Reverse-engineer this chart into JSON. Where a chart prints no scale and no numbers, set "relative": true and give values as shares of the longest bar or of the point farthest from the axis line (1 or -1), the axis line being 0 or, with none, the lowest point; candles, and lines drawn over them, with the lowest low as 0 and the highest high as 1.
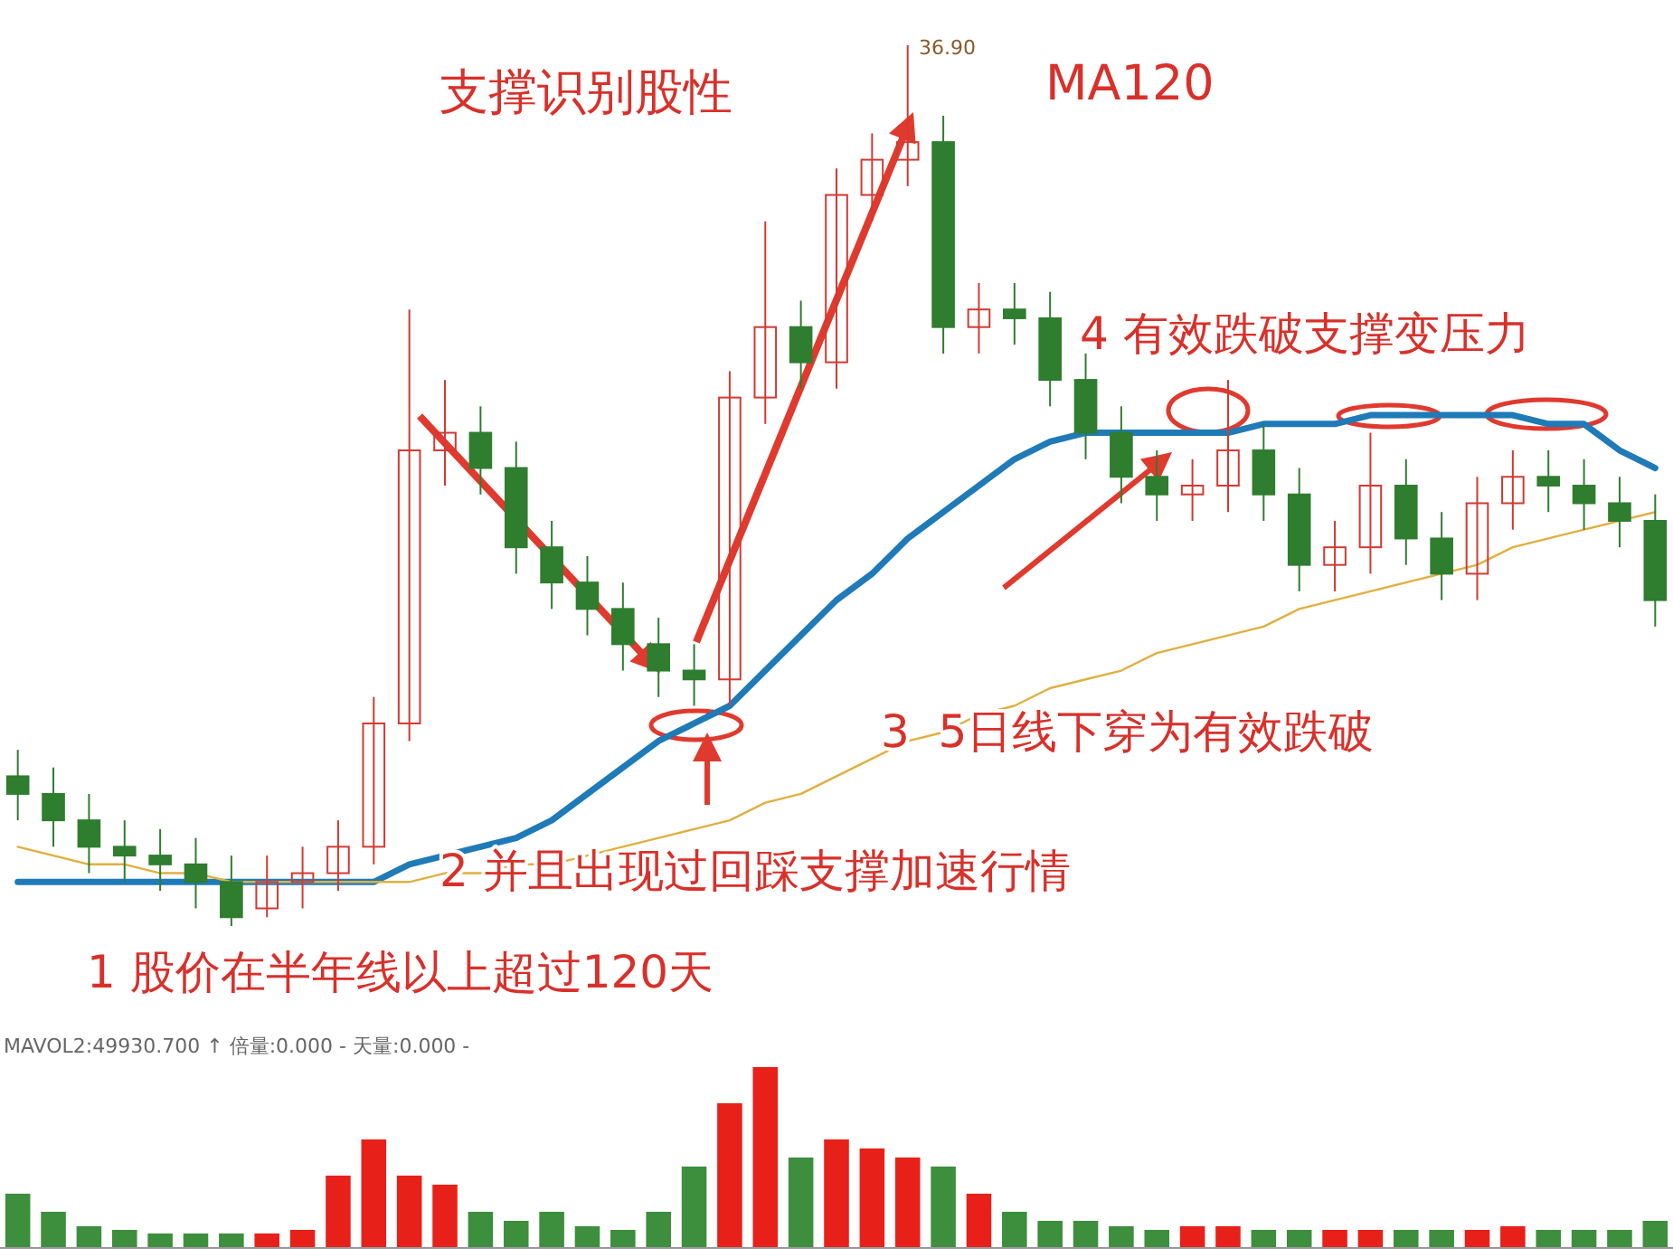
{
  "chart_data": [
    {
      "type": "candlestick",
      "relative": true,
      "categories": [
        null,
        null,
        null,
        null,
        null,
        null,
        null,
        null,
        null,
        null,
        null,
        null,
        null,
        null,
        null,
        null,
        null,
        null,
        null,
        null,
        null,
        null,
        null,
        null,
        null,
        null,
        null,
        null,
        null,
        null,
        null,
        null,
        null,
        null,
        null,
        null,
        null,
        null,
        null,
        null,
        null,
        null,
        null,
        null,
        null,
        null,
        null
      ],
      "ohlc": [
        [
          0.17,
          0.2,
          0.12,
          0.15
        ],
        [
          0.15,
          0.18,
          0.09,
          0.12
        ],
        [
          0.12,
          0.15,
          0.06,
          0.09
        ],
        [
          0.09,
          0.12,
          0.05,
          0.08
        ],
        [
          0.08,
          0.11,
          0.04,
          0.07
        ],
        [
          0.07,
          0.1,
          0.02,
          0.05
        ],
        [
          0.05,
          0.08,
          0.0,
          0.01
        ],
        [
          0.02,
          0.08,
          0.01,
          0.05
        ],
        [
          0.05,
          0.09,
          0.02,
          0.06
        ],
        [
          0.06,
          0.12,
          0.04,
          0.09
        ],
        [
          0.09,
          0.26,
          0.07,
          0.23
        ],
        [
          0.23,
          0.7,
          0.21,
          0.54
        ],
        [
          0.54,
          0.62,
          0.5,
          0.56
        ],
        [
          0.56,
          0.59,
          0.49,
          0.52
        ],
        [
          0.52,
          0.55,
          0.4,
          0.43
        ],
        [
          0.43,
          0.46,
          0.36,
          0.39
        ],
        [
          0.39,
          0.42,
          0.33,
          0.36
        ],
        [
          0.36,
          0.39,
          0.29,
          0.32
        ],
        [
          0.32,
          0.35,
          0.26,
          0.29
        ],
        [
          0.29,
          0.32,
          0.25,
          0.28
        ],
        [
          0.28,
          0.63,
          0.25,
          0.6
        ],
        [
          0.6,
          0.8,
          0.57,
          0.68
        ],
        [
          0.68,
          0.71,
          0.61,
          0.64
        ],
        [
          0.64,
          0.86,
          0.61,
          0.83
        ],
        [
          0.83,
          0.9,
          0.8,
          0.87
        ],
        [
          0.87,
          1.0,
          0.84,
          0.89
        ],
        [
          0.89,
          0.92,
          0.65,
          0.68
        ],
        [
          0.68,
          0.73,
          0.65,
          0.7
        ],
        [
          0.7,
          0.73,
          0.66,
          0.69
        ],
        [
          0.69,
          0.72,
          0.59,
          0.62
        ],
        [
          0.62,
          0.65,
          0.53,
          0.56
        ],
        [
          0.56,
          0.59,
          0.48,
          0.51
        ],
        [
          0.51,
          0.54,
          0.46,
          0.49
        ],
        [
          0.49,
          0.53,
          0.46,
          0.5
        ],
        [
          0.5,
          0.62,
          0.47,
          0.54
        ],
        [
          0.54,
          0.57,
          0.46,
          0.49
        ],
        [
          0.49,
          0.52,
          0.38,
          0.41
        ],
        [
          0.41,
          0.46,
          0.38,
          0.43
        ],
        [
          0.43,
          0.56,
          0.4,
          0.5
        ],
        [
          0.5,
          0.53,
          0.41,
          0.44
        ],
        [
          0.44,
          0.47,
          0.37,
          0.4
        ],
        [
          0.4,
          0.51,
          0.37,
          0.48
        ],
        [
          0.48,
          0.54,
          0.45,
          0.51
        ],
        [
          0.51,
          0.54,
          0.47,
          0.5
        ],
        [
          0.5,
          0.53,
          0.45,
          0.48
        ],
        [
          0.48,
          0.51,
          0.43,
          0.46
        ],
        [
          0.46,
          0.49,
          0.34,
          0.37
        ]
      ],
      "series": [
        {
          "type": "line",
          "color": "#1f7ab8",
          "values": [
            0.05,
            0.05,
            0.05,
            0.05,
            0.05,
            0.05,
            0.05,
            0.05,
            0.05,
            0.05,
            0.05,
            0.07,
            0.08,
            0.09,
            0.1,
            0.12,
            0.15,
            0.18,
            0.21,
            0.23,
            0.25,
            0.29,
            0.33,
            0.37,
            0.4,
            0.44,
            0.47,
            0.5,
            0.53,
            0.55,
            0.56,
            0.56,
            0.56,
            0.56,
            0.56,
            0.57,
            0.57,
            0.57,
            0.58,
            0.58,
            0.58,
            0.58,
            0.58,
            0.57,
            0.57,
            0.54,
            0.52
          ]
        },
        {
          "type": "line",
          "color": "#e0b040",
          "values": [
            0.09,
            0.08,
            0.07,
            0.07,
            0.06,
            0.06,
            0.05,
            0.05,
            0.05,
            0.05,
            0.05,
            0.05,
            0.06,
            0.06,
            0.07,
            0.07,
            0.08,
            0.09,
            0.1,
            0.11,
            0.12,
            0.14,
            0.15,
            0.17,
            0.19,
            0.21,
            0.22,
            0.24,
            0.25,
            0.27,
            0.28,
            0.29,
            0.31,
            0.32,
            0.33,
            0.34,
            0.36,
            0.37,
            0.38,
            0.39,
            0.4,
            0.41,
            0.43,
            0.44,
            0.45,
            0.46,
            0.47
          ]
        }
      ],
      "annotations": [
        "36.90",
        "支撑识别股性",
        "MA120",
        "4 有效跌破支撑变压力",
        "3  5日线下穿为有效跌破",
        "2 并且出现过回踩支撑加速行情",
        "1 股价在半年线以上超过120天"
      ]
    },
    {
      "type": "bar",
      "relative": true,
      "categories": [
        null,
        null,
        null,
        null,
        null,
        null,
        null,
        null,
        null,
        null,
        null,
        null,
        null,
        null,
        null,
        null,
        null,
        null,
        null,
        null,
        null,
        null,
        null,
        null,
        null,
        null,
        null,
        null,
        null,
        null,
        null,
        null,
        null,
        null,
        null,
        null,
        null,
        null,
        null,
        null,
        null,
        null,
        null,
        null,
        null,
        null,
        null
      ],
      "values": [
        0.3,
        0.2,
        0.12,
        0.1,
        0.08,
        0.08,
        0.08,
        0.08,
        0.1,
        0.4,
        0.6,
        0.4,
        0.35,
        0.2,
        0.15,
        0.2,
        0.12,
        0.1,
        0.2,
        0.45,
        0.8,
        1.0,
        0.5,
        0.6,
        0.55,
        0.5,
        0.45,
        0.3,
        0.2,
        0.15,
        0.15,
        0.12,
        0.1,
        0.12,
        0.12,
        0.1,
        0.1,
        0.1,
        0.1,
        0.1,
        0.1,
        0.1,
        0.12,
        0.1,
        0.1,
        0.1,
        0.15
      ],
      "colors": [
        "#3d8f3d",
        "#3d8f3d",
        "#3d8f3d",
        "#3d8f3d",
        "#3d8f3d",
        "#3d8f3d",
        "#3d8f3d",
        "#e8201a",
        "#e8201a",
        "#e8201a",
        "#e8201a",
        "#e8201a",
        "#e8201a",
        "#3d8f3d",
        "#3d8f3d",
        "#3d8f3d",
        "#3d8f3d",
        "#3d8f3d",
        "#3d8f3d",
        "#3d8f3d",
        "#e8201a",
        "#e8201a",
        "#3d8f3d",
        "#e8201a",
        "#e8201a",
        "#e8201a",
        "#3d8f3d",
        "#e8201a",
        "#3d8f3d",
        "#3d8f3d",
        "#3d8f3d",
        "#3d8f3d",
        "#3d8f3d",
        "#e8201a",
        "#e8201a",
        "#3d8f3d",
        "#3d8f3d",
        "#e8201a",
        "#e8201a",
        "#3d8f3d",
        "#3d8f3d",
        "#e8201a",
        "#e8201a",
        "#3d8f3d",
        "#3d8f3d",
        "#3d8f3d",
        "#3d8f3d"
      ],
      "annotations": [
        "MAVOL2:49930.700 ↑ 倍量:0.000 - 天量:0.000 -"
      ]
    }
  ]
}
